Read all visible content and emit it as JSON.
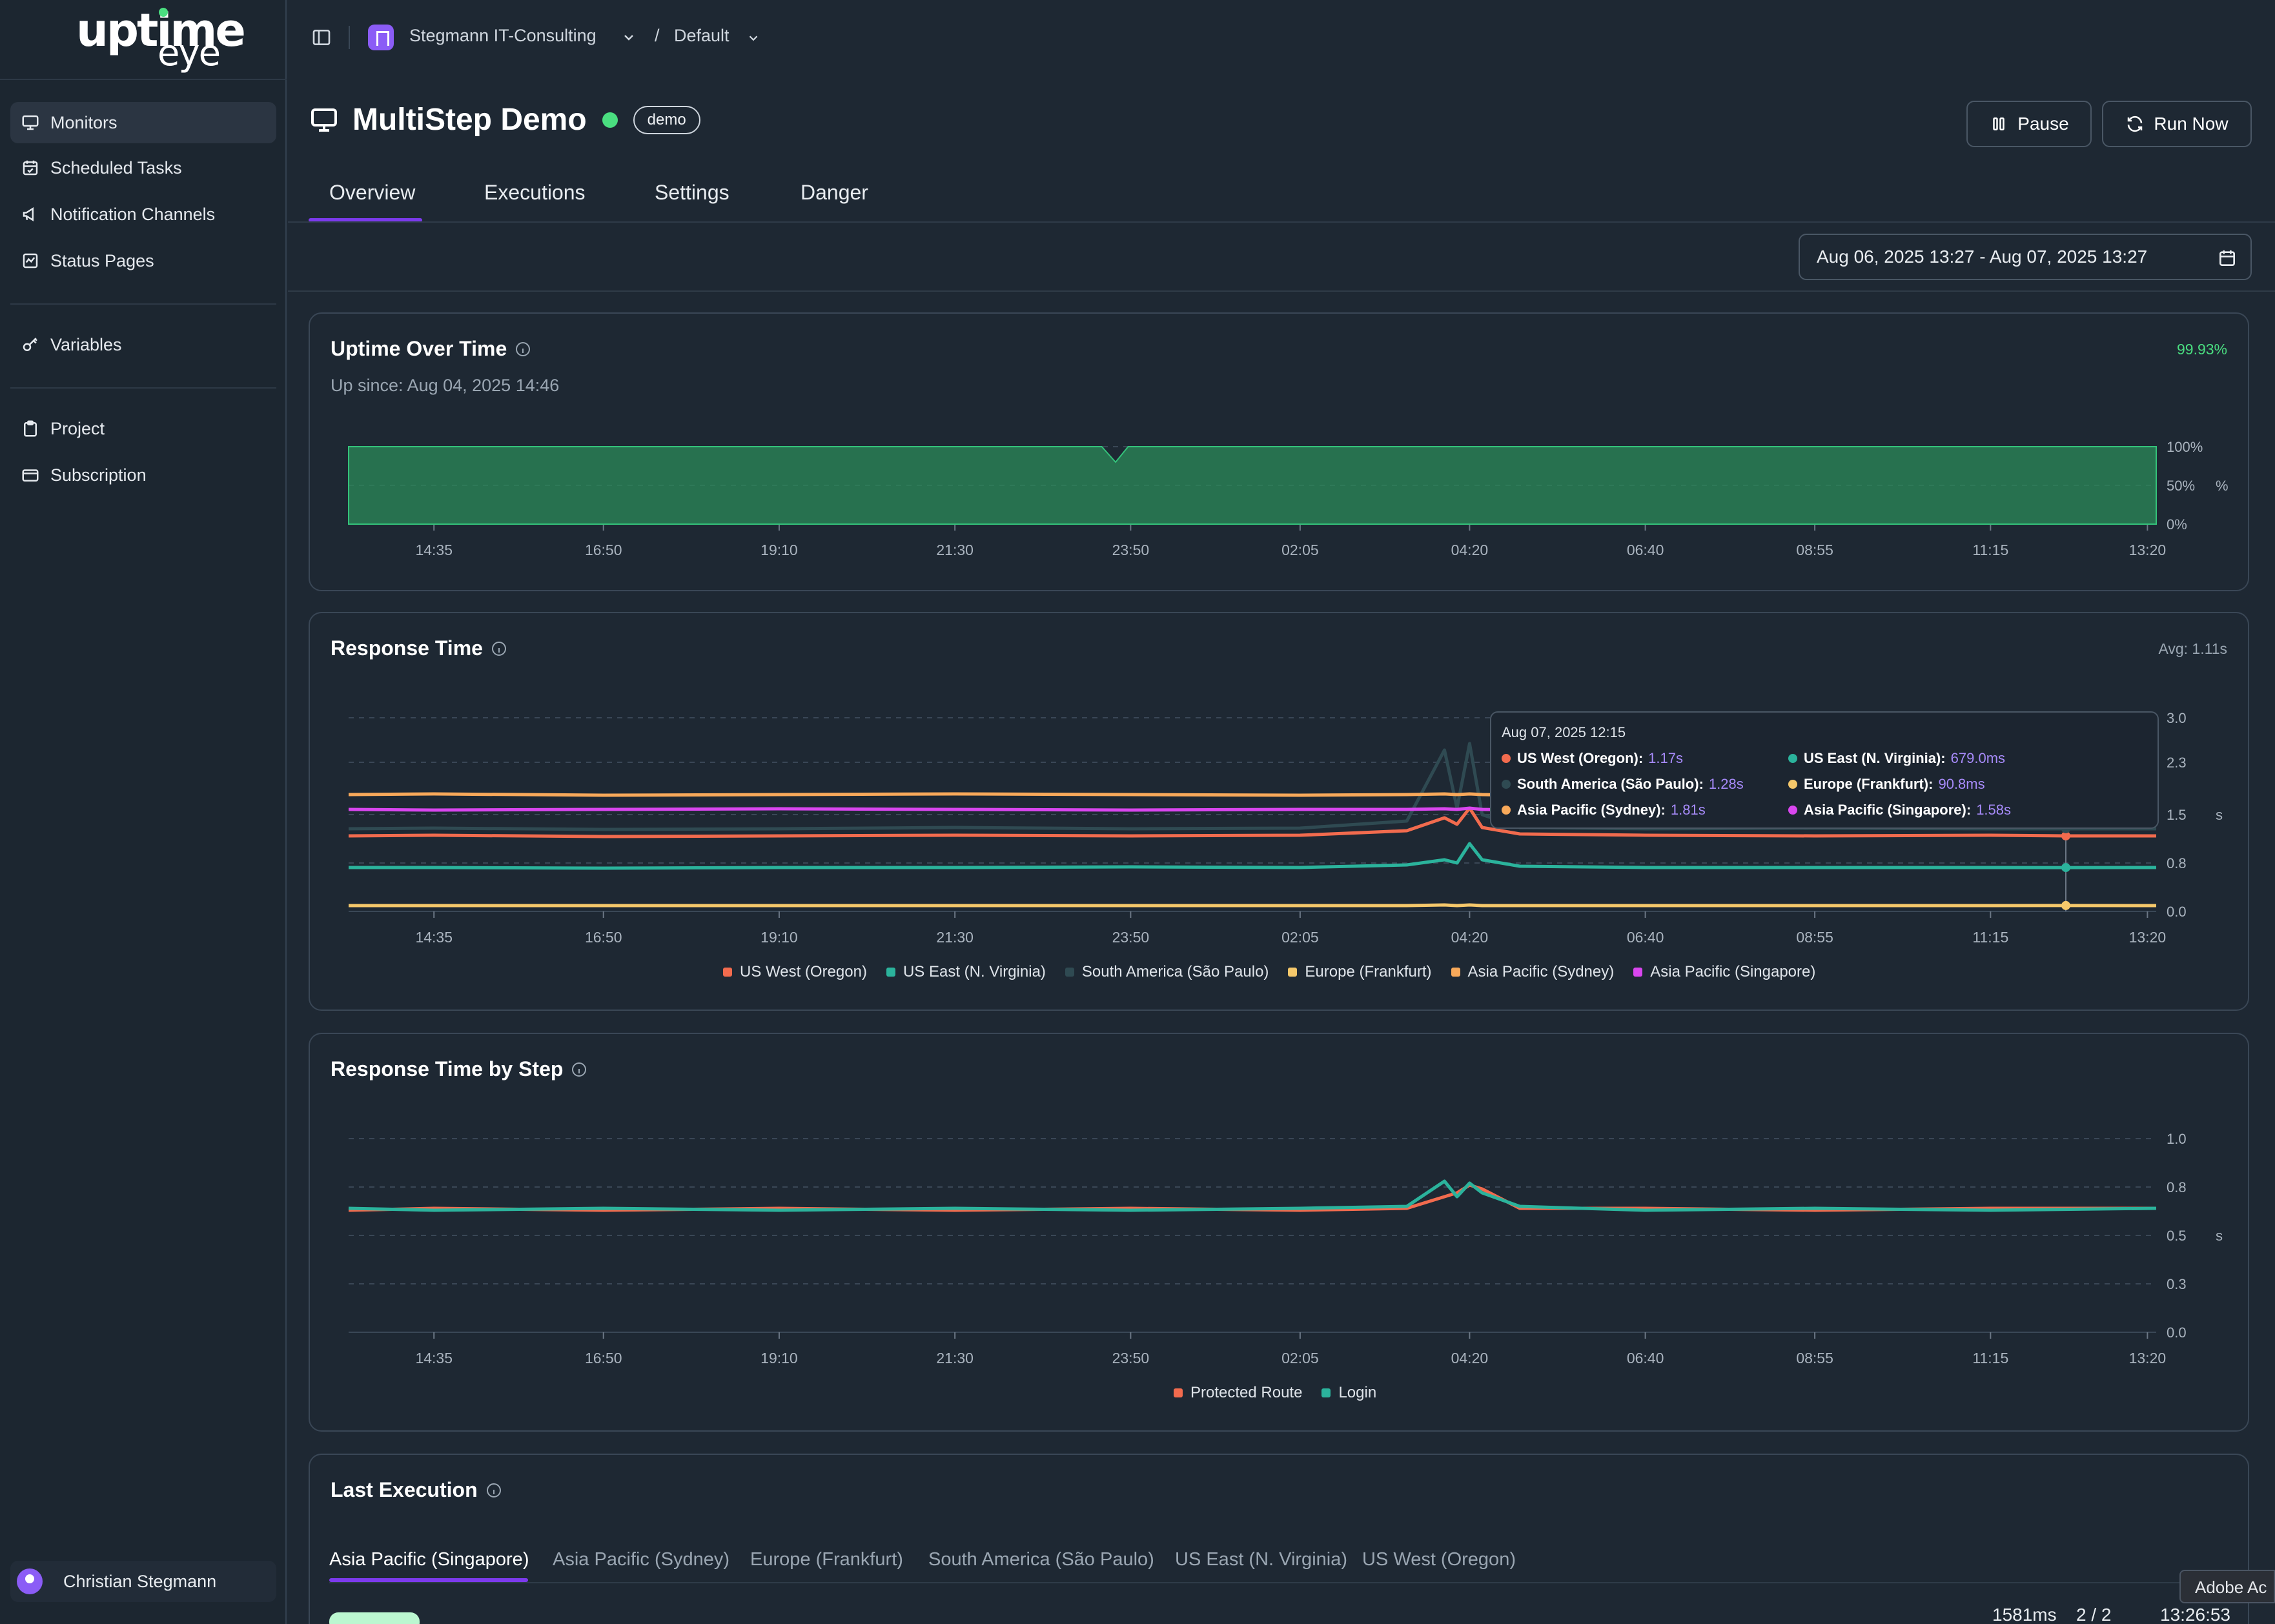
{
  "brand": {
    "line1": "uptime",
    "line2": "eye"
  },
  "sidebar": {
    "items": [
      {
        "label": "Monitors",
        "icon": "monitor-icon"
      },
      {
        "label": "Scheduled Tasks",
        "icon": "calendar-icon"
      },
      {
        "label": "Notification Channels",
        "icon": "megaphone-icon"
      },
      {
        "label": "Status Pages",
        "icon": "status-page-icon"
      },
      {
        "label": "Variables",
        "icon": "key-icon"
      },
      {
        "label": "Project",
        "icon": "clipboard-icon"
      },
      {
        "label": "Subscription",
        "icon": "credit-card-icon"
      }
    ],
    "user": "Christian Stegmann"
  },
  "breadcrumb": {
    "org": "Stegmann IT-Consulting",
    "separator": "/",
    "project": "Default"
  },
  "monitor": {
    "title": "MultiStep Demo",
    "tag": "demo",
    "status_color": "#4ade80"
  },
  "actions": {
    "pause": "Pause",
    "run_now": "Run Now"
  },
  "tabs": [
    "Overview",
    "Executions",
    "Settings",
    "Danger"
  ],
  "date_range": "Aug 06, 2025 13:27 - Aug 07, 2025 13:27",
  "uptime": {
    "title": "Uptime Over Time",
    "up_since": "Up since: Aug 04, 2025 14:46",
    "percentage": "99.93%"
  },
  "response_time": {
    "title": "Response Time",
    "avg": "Avg: 1.11s"
  },
  "tooltip": {
    "date": "Aug 07, 2025 12:15",
    "rows": [
      {
        "name": "US West (Oregon):",
        "value": "1.17s",
        "color": "#f26b4e"
      },
      {
        "name": "US East (N. Virginia):",
        "value": "679.0ms",
        "color": "#2bb39c"
      },
      {
        "name": "South America (São Paulo):",
        "value": "1.28s",
        "color": "#2f4a52"
      },
      {
        "name": "Europe (Frankfurt):",
        "value": "90.8ms",
        "color": "#f5c86b"
      },
      {
        "name": "Asia Pacific (Sydney):",
        "value": "1.81s",
        "color": "#f8a95a"
      },
      {
        "name": "Asia Pacific (Singapore):",
        "value": "1.58s",
        "color": "#d946ef"
      }
    ]
  },
  "step_chart": {
    "title": "Response Time by Step"
  },
  "last_execution": {
    "title": "Last Execution",
    "tabs": [
      "Asia Pacific (Singapore)",
      "Asia Pacific (Sydney)",
      "Europe (Frankfurt)",
      "South America (São Paulo)",
      "US East (N. Virginia)",
      "US West (Oregon)"
    ],
    "duration": "1581ms",
    "steps": "2 / 2",
    "time": "13:26:53"
  },
  "overlay": {
    "label": "Adobe Ac"
  },
  "chart_data": [
    {
      "type": "area",
      "title": "Uptime Over Time",
      "x_ticks": [
        "14:35",
        "16:50",
        "19:10",
        "21:30",
        "23:50",
        "02:05",
        "04:20",
        "06:40",
        "08:55",
        "11:15",
        "13:20"
      ],
      "y_ticks": [
        "0%",
        "50%",
        "100%"
      ],
      "ylabel": "%",
      "ylim": [
        0,
        100
      ],
      "series": [
        {
          "color": "#2b8a5a",
          "x": [
            "13:27",
            "23:27",
            "23:38",
            "23:48",
            "13:27"
          ],
          "values": [
            100,
            100,
            80,
            100,
            100
          ]
        }
      ]
    },
    {
      "type": "line",
      "title": "Response Time",
      "x_ticks": [
        "14:35",
        "16:50",
        "19:10",
        "21:30",
        "23:50",
        "02:05",
        "04:20",
        "06:40",
        "08:55",
        "11:15",
        "13:20"
      ],
      "y_ticks": [
        "0.0",
        "0.8",
        "1.5",
        "2.3",
        "3.0"
      ],
      "ylabel": "s",
      "ylim": [
        0,
        3
      ],
      "x": [
        "13:27",
        "14:35",
        "16:50",
        "19:10",
        "21:30",
        "23:50",
        "02:05",
        "03:30",
        "04:00",
        "04:10",
        "04:20",
        "04:30",
        "05:00",
        "06:40",
        "08:55",
        "11:15",
        "12:15",
        "13:20"
      ],
      "series": [
        {
          "name": "US West (Oregon)",
          "color": "#f26b4e",
          "values": [
            1.17,
            1.18,
            1.16,
            1.17,
            1.18,
            1.17,
            1.18,
            1.25,
            1.45,
            1.35,
            1.6,
            1.3,
            1.2,
            1.18,
            1.17,
            1.18,
            1.17,
            1.17
          ]
        },
        {
          "name": "US East (N. Virginia)",
          "color": "#2bb39c",
          "values": [
            0.68,
            0.68,
            0.67,
            0.68,
            0.68,
            0.69,
            0.68,
            0.72,
            0.8,
            0.75,
            1.05,
            0.8,
            0.7,
            0.68,
            0.68,
            0.68,
            0.679,
            0.68
          ]
        },
        {
          "name": "South America (São Paulo)",
          "color": "#2f4a52",
          "values": [
            1.28,
            1.29,
            1.27,
            1.28,
            1.3,
            1.28,
            1.29,
            1.4,
            2.5,
            1.6,
            2.6,
            1.5,
            1.3,
            1.28,
            1.29,
            1.28,
            1.28,
            1.28
          ]
        },
        {
          "name": "Europe (Frankfurt)",
          "color": "#f5c86b",
          "values": [
            0.09,
            0.09,
            0.09,
            0.09,
            0.09,
            0.09,
            0.09,
            0.09,
            0.1,
            0.09,
            0.1,
            0.09,
            0.09,
            0.09,
            0.09,
            0.09,
            0.0908,
            0.09
          ]
        },
        {
          "name": "Asia Pacific (Sydney)",
          "color": "#f8a95a",
          "values": [
            1.81,
            1.82,
            1.8,
            1.81,
            1.82,
            1.81,
            1.8,
            1.81,
            1.82,
            1.81,
            1.82,
            1.81,
            1.8,
            1.81,
            1.82,
            1.81,
            1.81,
            1.81
          ]
        },
        {
          "name": "Asia Pacific (Singapore)",
          "color": "#d946ef",
          "values": [
            1.58,
            1.57,
            1.58,
            1.59,
            1.58,
            1.57,
            1.58,
            1.58,
            1.59,
            1.58,
            1.6,
            1.58,
            1.57,
            1.58,
            1.58,
            1.58,
            1.58,
            1.58
          ]
        }
      ]
    },
    {
      "type": "line",
      "title": "Response Time by Step",
      "x_ticks": [
        "14:35",
        "16:50",
        "19:10",
        "21:30",
        "23:50",
        "02:05",
        "04:20",
        "06:40",
        "08:55",
        "11:15",
        "13:20"
      ],
      "y_ticks": [
        "0.0",
        "0.3",
        "0.5",
        "0.8",
        "1.0"
      ],
      "ylabel": "s",
      "ylim": [
        0,
        1
      ],
      "x": [
        "13:27",
        "14:35",
        "16:50",
        "19:10",
        "21:30",
        "23:50",
        "02:05",
        "03:30",
        "04:00",
        "04:10",
        "04:20",
        "04:30",
        "05:00",
        "06:40",
        "08:55",
        "11:15",
        "13:20"
      ],
      "series": [
        {
          "name": "Protected Route",
          "color": "#f26b4e",
          "values": [
            0.63,
            0.64,
            0.63,
            0.64,
            0.63,
            0.64,
            0.63,
            0.64,
            0.7,
            0.72,
            0.76,
            0.74,
            0.64,
            0.64,
            0.63,
            0.64,
            0.64
          ]
        },
        {
          "name": "Login",
          "color": "#2bb39c",
          "values": [
            0.64,
            0.63,
            0.64,
            0.63,
            0.64,
            0.63,
            0.64,
            0.65,
            0.78,
            0.7,
            0.77,
            0.72,
            0.65,
            0.63,
            0.64,
            0.63,
            0.64
          ]
        }
      ]
    }
  ]
}
